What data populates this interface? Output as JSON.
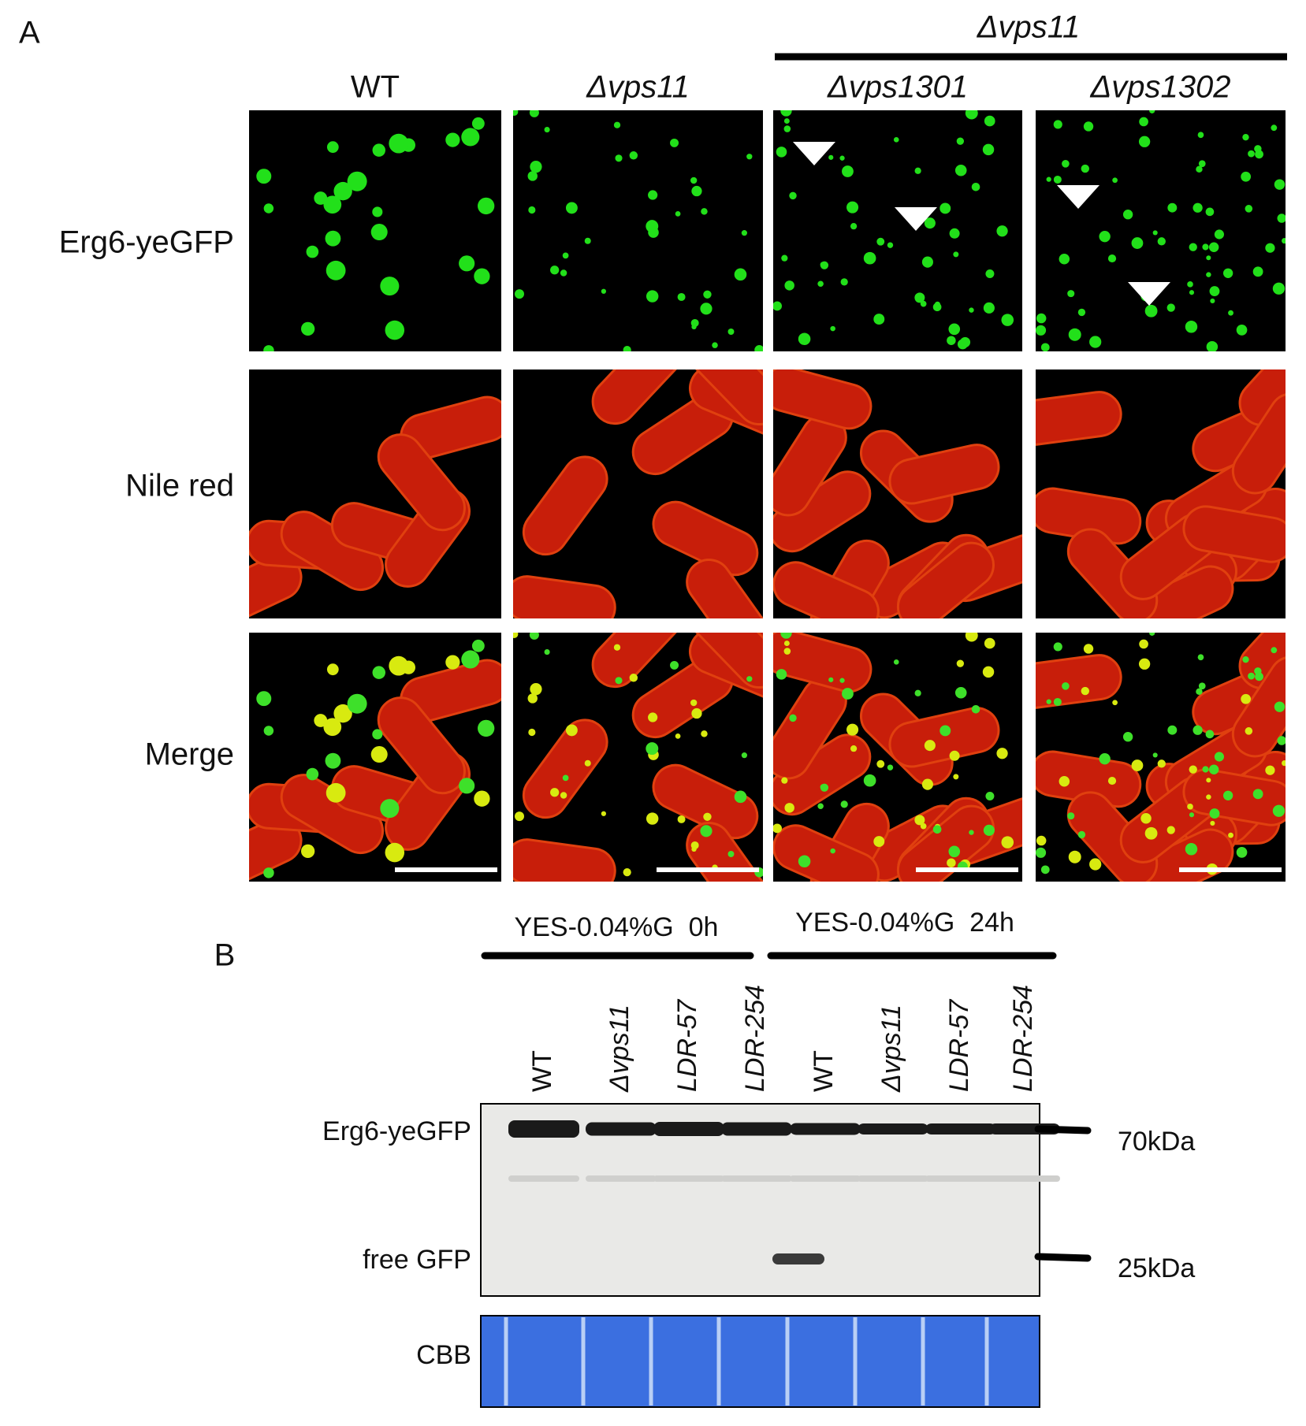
{
  "panel_a": {
    "label": "A",
    "group_label": "Δvps11",
    "columns": [
      "WT",
      "Δvps11",
      "Δvps1301",
      "Δvps1302"
    ],
    "rows": [
      "Erg6-yeGFP",
      "Nile red",
      "Merge"
    ]
  },
  "panel_b": {
    "label": "B",
    "conditions": [
      "YES-0.04%G  0h",
      "YES-0.04%G  24h"
    ],
    "lanes": [
      "WT",
      "Δvps11",
      "LDR-57",
      "LDR-254",
      "WT",
      "Δvps11",
      "LDR-57",
      "LDR-254"
    ],
    "bands": [
      "Erg6-yeGFP",
      "free GFP",
      "CBB"
    ],
    "markers": [
      "70kDa",
      "25kDa"
    ]
  }
}
